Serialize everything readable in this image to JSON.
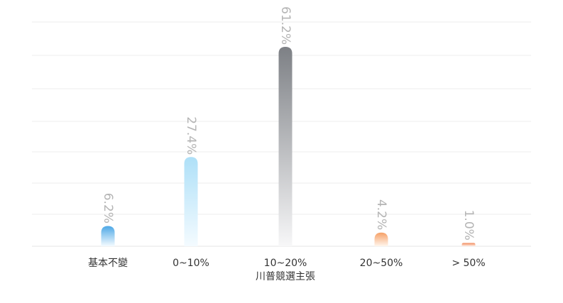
{
  "chart_data": {
    "type": "bar",
    "categories": [
      "基本不變",
      "0~10%",
      "10~20%",
      "20~50%",
      "> 50%"
    ],
    "category_sublabels": [
      "",
      "",
      "川普競選主張",
      "",
      ""
    ],
    "values": [
      6.2,
      27.4,
      61.2,
      4.2,
      1.0
    ],
    "value_labels": [
      "6.2%",
      "27.4%",
      "61.2%",
      "4.2%",
      "1.0%"
    ],
    "title": "",
    "xlabel": "",
    "ylabel": "",
    "ylim": [
      0,
      61.2
    ],
    "grid": true,
    "legend": "none",
    "bar_colors": [
      {
        "top": "#4da8e6",
        "bottom": "#f4fbff"
      },
      {
        "top": "#aee0f8",
        "bottom": "#f4fbff"
      },
      {
        "top": "#7d8085",
        "bottom": "#f7f7f8"
      },
      {
        "top": "#f6a066",
        "bottom": "#fff6ee"
      },
      {
        "top": "#f18a5a",
        "bottom": "#fff0e8"
      }
    ],
    "value_label_color": "#b4b4b4",
    "category_label_color": "#333333",
    "grid_color": "#ececec"
  }
}
